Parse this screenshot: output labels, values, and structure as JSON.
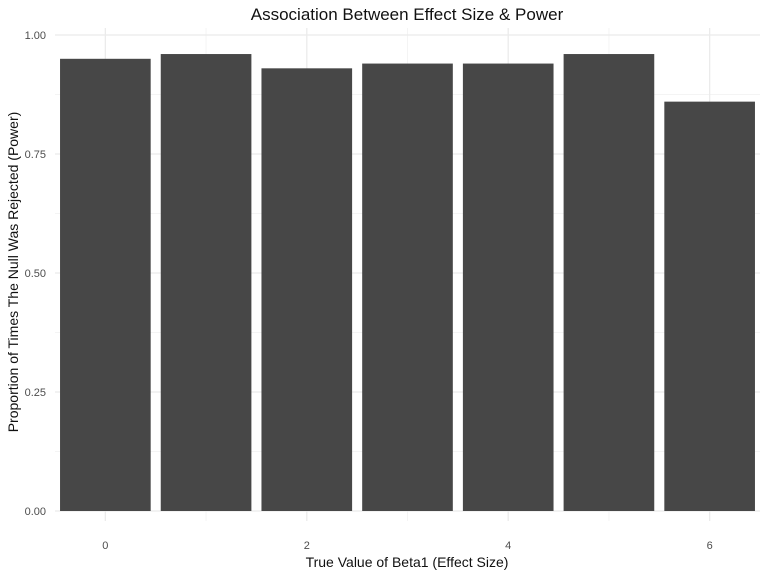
{
  "chart_data": {
    "type": "bar",
    "title": "Association Between Effect Size & Power",
    "xlabel": "True Value of Beta1 (Effect Size)",
    "ylabel": "Proportion of Times The Null Was Rejected (Power)",
    "x": [
      0,
      1,
      2,
      3,
      4,
      5,
      6
    ],
    "values": [
      0.95,
      0.96,
      0.93,
      0.94,
      0.94,
      0.96,
      0.86
    ],
    "xlim": [
      -0.5,
      6.5
    ],
    "ylim": [
      0,
      1
    ],
    "x_ticks": [
      0,
      2,
      4,
      6
    ],
    "x_tick_labels": [
      "0",
      "2",
      "4",
      "6"
    ],
    "y_ticks": [
      0,
      0.25,
      0.5,
      0.75,
      1
    ],
    "y_tick_labels": [
      "0.00",
      "0.25",
      "0.50",
      "0.75",
      "1.00"
    ],
    "grid": true,
    "legend": "none",
    "colors": {
      "bar": "#474747",
      "grid_major": "#ebebeb",
      "grid_minor": "#f4f4f4",
      "tick_text": "#4d4d4d",
      "title_text": "#111111"
    }
  }
}
